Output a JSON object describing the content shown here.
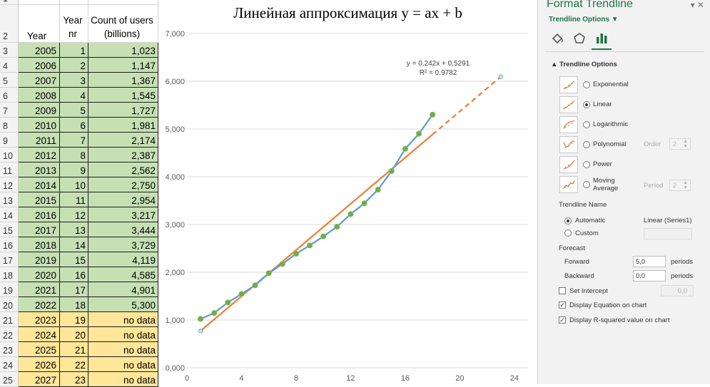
{
  "sheet": {
    "header": {
      "row": "2",
      "year": "Year",
      "nr_top": "Year",
      "nr_bottom": "nr",
      "count_top": "Count of users",
      "count_bottom": "(billions)"
    },
    "row1": "1",
    "rows": [
      {
        "row": "3",
        "year": "2005",
        "nr": "1",
        "count": "1,023",
        "fill": "green"
      },
      {
        "row": "4",
        "year": "2006",
        "nr": "2",
        "count": "1,147",
        "fill": "green"
      },
      {
        "row": "5",
        "year": "2007",
        "nr": "3",
        "count": "1,367",
        "fill": "green"
      },
      {
        "row": "6",
        "year": "2008",
        "nr": "4",
        "count": "1,545",
        "fill": "green"
      },
      {
        "row": "7",
        "year": "2009",
        "nr": "5",
        "count": "1,727",
        "fill": "green"
      },
      {
        "row": "8",
        "year": "2010",
        "nr": "6",
        "count": "1,981",
        "fill": "green"
      },
      {
        "row": "9",
        "year": "2011",
        "nr": "7",
        "count": "2,174",
        "fill": "green"
      },
      {
        "row": "10",
        "year": "2012",
        "nr": "8",
        "count": "2,387",
        "fill": "green"
      },
      {
        "row": "11",
        "year": "2013",
        "nr": "9",
        "count": "2,562",
        "fill": "green"
      },
      {
        "row": "12",
        "year": "2014",
        "nr": "10",
        "count": "2,750",
        "fill": "green"
      },
      {
        "row": "13",
        "year": "2015",
        "nr": "11",
        "count": "2,954",
        "fill": "green"
      },
      {
        "row": "14",
        "year": "2016",
        "nr": "12",
        "count": "3,217",
        "fill": "green"
      },
      {
        "row": "15",
        "year": "2017",
        "nr": "13",
        "count": "3,444",
        "fill": "green"
      },
      {
        "row": "16",
        "year": "2018",
        "nr": "14",
        "count": "3,729",
        "fill": "green"
      },
      {
        "row": "17",
        "year": "2019",
        "nr": "15",
        "count": "4,119",
        "fill": "green"
      },
      {
        "row": "18",
        "year": "2020",
        "nr": "16",
        "count": "4,585",
        "fill": "green"
      },
      {
        "row": "19",
        "year": "2021",
        "nr": "17",
        "count": "4,901",
        "fill": "green"
      },
      {
        "row": "20",
        "year": "2022",
        "nr": "18",
        "count": "5,300",
        "fill": "green"
      },
      {
        "row": "21",
        "year": "2023",
        "nr": "19",
        "count": "no data",
        "fill": "yellow"
      },
      {
        "row": "22",
        "year": "2024",
        "nr": "20",
        "count": "no data",
        "fill": "yellow"
      },
      {
        "row": "23",
        "year": "2025",
        "nr": "21",
        "count": "no data",
        "fill": "yellow"
      },
      {
        "row": "24",
        "year": "2026",
        "nr": "22",
        "count": "no data",
        "fill": "yellow"
      },
      {
        "row": "25",
        "year": "2027",
        "nr": "23",
        "count": "no data",
        "fill": "yellow"
      }
    ],
    "colors": {
      "green": "#c6e0b4",
      "yellow": "#ffe699"
    }
  },
  "chart_data": {
    "type": "line",
    "title": "Линейная аппроксимация y = ax + b",
    "x": [
      1,
      2,
      3,
      4,
      5,
      6,
      7,
      8,
      9,
      10,
      11,
      12,
      13,
      14,
      15,
      16,
      17,
      18
    ],
    "series": [
      {
        "values": [
          1.023,
          1.147,
          1.367,
          1.545,
          1.727,
          1.981,
          2.174,
          2.387,
          2.562,
          2.75,
          2.954,
          3.217,
          3.444,
          3.729,
          4.119,
          4.585,
          4.901,
          5.3
        ],
        "color": "#5b9bd5",
        "marker_color": "#70ad47"
      }
    ],
    "trendline": {
      "type": "linear",
      "slope": 0.242,
      "intercept": 0.5291,
      "x_range": [
        1,
        18
      ],
      "forecast_x_end": 23,
      "color": "#ed7d31",
      "equation_label": "y = 0,242x + 0,5291",
      "r2_label": "R² = 0,9782"
    },
    "extra_points": [
      {
        "x": 1,
        "y": 0.771
      },
      {
        "x": 23,
        "y": 6.095
      }
    ],
    "xlim": [
      0,
      25
    ],
    "ylim": [
      0,
      7
    ],
    "xticks": [
      0,
      4,
      8,
      12,
      16,
      20,
      24
    ],
    "yticks": [
      0,
      1,
      2,
      3,
      4,
      5,
      6,
      7
    ],
    "xtick_labels": [
      "0",
      "4",
      "8",
      "12",
      "16",
      "20",
      "24"
    ],
    "ytick_labels": [
      "0,000",
      "1,000",
      "2,000",
      "3,000",
      "4,000",
      "5,000",
      "6,000",
      "7,000"
    ],
    "grid": true
  },
  "pane": {
    "title": "Format Trendline",
    "close": "▾ ✕",
    "subtitle": "Trendline Options ▼",
    "section": "▲ Trendline Options",
    "options": [
      {
        "label": "Exponential",
        "selected": false
      },
      {
        "label": "Linear",
        "selected": true
      },
      {
        "label": "Logarithmic",
        "selected": false
      },
      {
        "label": "Polynomial",
        "selected": false
      },
      {
        "label": "Power",
        "selected": false
      },
      {
        "label": "Moving Average",
        "selected": false
      }
    ],
    "order_label": "Order",
    "order_value": "2",
    "period_label": "Period",
    "period_value": "2",
    "trendline_name_label": "Trendline Name",
    "automatic_label": "Automatic",
    "automatic_value": "Linear (Series1)",
    "custom_label": "Custom",
    "forecast_label": "Forecast",
    "forward_label": "Forward",
    "forward_value": "5,0",
    "forward_unit": "periods",
    "backward_label": "Backward",
    "backward_value": "0,0",
    "backward_unit": "periods",
    "set_intercept_label": "Set Intercept",
    "set_intercept_value": "0,0",
    "display_equation_label": "Display Equation on chart",
    "display_r2_label": "Display R-squared value on chart",
    "accent": "#217346"
  }
}
